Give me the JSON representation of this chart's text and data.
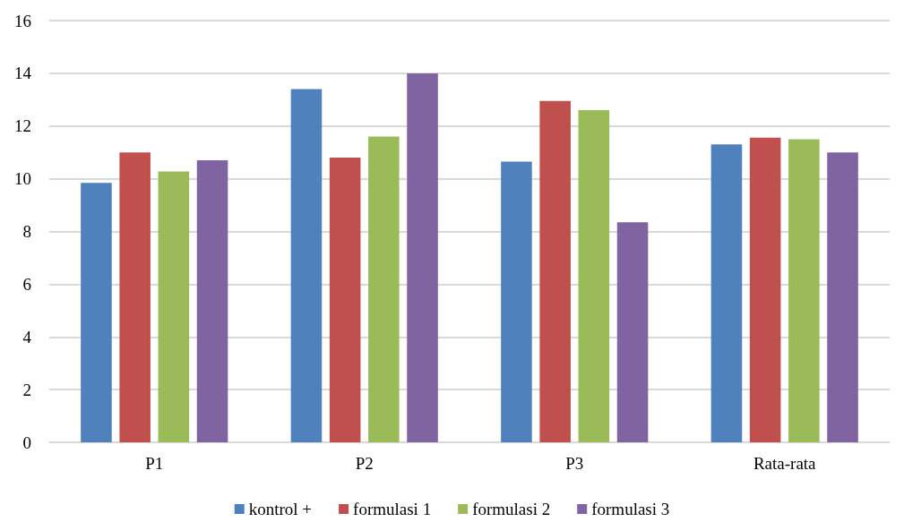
{
  "chart_data": {
    "type": "bar",
    "categories": [
      "P1",
      "P2",
      "P3",
      "Rata-rata"
    ],
    "series": [
      {
        "name": "kontrol +",
        "color": "#4f81bd",
        "values": [
          9.84,
          13.4,
          10.65,
          11.3
        ]
      },
      {
        "name": "formulasi 1",
        "color": "#c0504d",
        "values": [
          11.0,
          10.8,
          12.95,
          11.56
        ]
      },
      {
        "name": "formulasi 2",
        "color": "#9bbb59",
        "values": [
          10.28,
          11.6,
          12.6,
          11.5
        ]
      },
      {
        "name": "formulasi 3",
        "color": "#8064a2",
        "values": [
          10.7,
          14.0,
          8.35,
          11.0
        ]
      }
    ],
    "ylim": [
      0,
      16
    ],
    "yticks": [
      0,
      2,
      4,
      6,
      8,
      10,
      12,
      14,
      16
    ],
    "grid": "y",
    "legend": "bottom"
  }
}
